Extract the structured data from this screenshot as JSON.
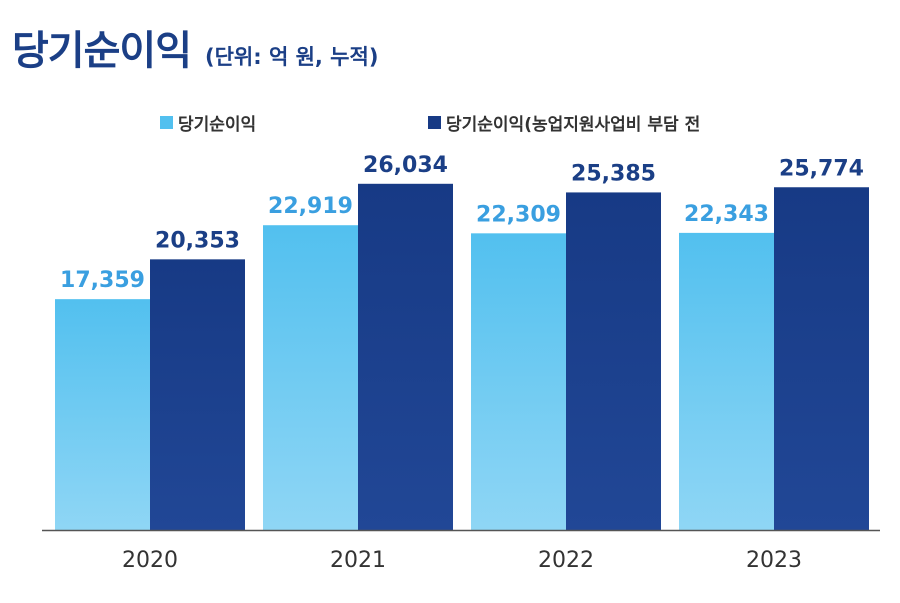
{
  "title": "당기순이익",
  "subtitle": "(단위: 억 원, 누적)",
  "colors": {
    "series1_top": "#52c0ef",
    "series1_bottom": "#8fd6f5",
    "series2_top": "#173a85",
    "series2_bottom": "#214796",
    "label1": "#3a9fe0",
    "label2": "#1b3f86",
    "axis": "#333333"
  },
  "chart_data": {
    "type": "bar",
    "categories": [
      "2020",
      "2021",
      "2022",
      "2023"
    ],
    "series": [
      {
        "name": "당기순이익",
        "values": [
          17359,
          22919,
          22309,
          22343
        ],
        "labels": [
          "17,359",
          "22,919",
          "22,309",
          "22,343"
        ]
      },
      {
        "name": "당기순이익(농업지원사업비 부담 전",
        "values": [
          20353,
          26034,
          25385,
          25774
        ],
        "labels": [
          "20,353",
          "26,034",
          "25,385",
          "25,774"
        ]
      }
    ],
    "ylim": [
      0,
      28500
    ],
    "grid": false,
    "legend_position": "top-center"
  }
}
